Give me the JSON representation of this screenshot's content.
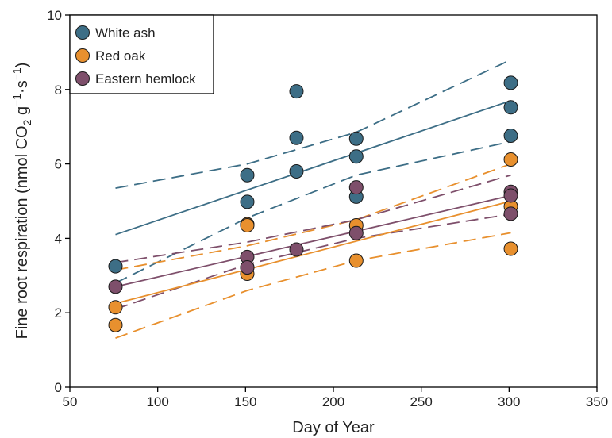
{
  "chart_data": {
    "type": "scatter",
    "title": "",
    "xlabel": "Day of Year",
    "ylabel": {
      "p1": "Fine root respiration (nmol CO",
      "sub": "2",
      "p2": " g",
      "sup1": "−1",
      "p3": "·s",
      "sup2": "−1",
      "p4": ")"
    },
    "xlim": [
      50,
      350
    ],
    "ylim": [
      0,
      10
    ],
    "xticks": [
      "50",
      "100",
      "150",
      "200",
      "250",
      "300",
      "350"
    ],
    "yticks": [
      "0",
      "2",
      "4",
      "6",
      "8",
      "10"
    ],
    "grid": false,
    "legend_position": "top-left",
    "series": [
      {
        "name": "White ash",
        "color": "#3d6e86",
        "points": [
          [
            76,
            3.25
          ],
          [
            151,
            5.7
          ],
          [
            151,
            4.98
          ],
          [
            179,
            7.95
          ],
          [
            179,
            6.7
          ],
          [
            179,
            5.8
          ],
          [
            213,
            6.68
          ],
          [
            213,
            6.2
          ],
          [
            213,
            5.12
          ],
          [
            301,
            8.18
          ],
          [
            301,
            7.52
          ],
          [
            301,
            6.76
          ]
        ],
        "fit": [
          [
            76,
            4.1
          ],
          [
            301,
            7.7
          ]
        ],
        "ci_upper": [
          [
            76,
            5.35
          ],
          [
            151,
            6.0
          ],
          [
            213,
            6.85
          ],
          [
            301,
            8.8
          ]
        ],
        "ci_lower": [
          [
            76,
            2.8
          ],
          [
            151,
            4.55
          ],
          [
            213,
            5.7
          ],
          [
            301,
            6.6
          ]
        ]
      },
      {
        "name": "Red oak",
        "color": "#e8902e",
        "points": [
          [
            76,
            2.15
          ],
          [
            76,
            1.67
          ],
          [
            151,
            4.38
          ],
          [
            151,
            4.35
          ],
          [
            151,
            3.05
          ],
          [
            151,
            3.22
          ],
          [
            213,
            4.35
          ],
          [
            213,
            3.4
          ],
          [
            301,
            6.12
          ],
          [
            301,
            4.86
          ],
          [
            301,
            3.72
          ]
        ],
        "fit": [
          [
            76,
            2.25
          ],
          [
            301,
            5.0
          ]
        ],
        "ci_upper": [
          [
            76,
            3.15
          ],
          [
            151,
            3.8
          ],
          [
            213,
            4.5
          ],
          [
            301,
            6.0
          ]
        ],
        "ci_lower": [
          [
            76,
            1.32
          ],
          [
            151,
            2.6
          ],
          [
            213,
            3.4
          ],
          [
            301,
            4.15
          ]
        ]
      },
      {
        "name": "Eastern hemlock",
        "color": "#7e4f6b",
        "points": [
          [
            76,
            2.7
          ],
          [
            151,
            3.5
          ],
          [
            151,
            3.22
          ],
          [
            179,
            3.7
          ],
          [
            213,
            5.37
          ],
          [
            213,
            4.14
          ],
          [
            301,
            5.25
          ],
          [
            301,
            5.15
          ],
          [
            301,
            4.66
          ]
        ],
        "fit": [
          [
            76,
            2.7
          ],
          [
            301,
            5.15
          ]
        ],
        "ci_upper": [
          [
            76,
            3.35
          ],
          [
            151,
            3.9
          ],
          [
            213,
            4.5
          ],
          [
            301,
            5.7
          ]
        ],
        "ci_lower": [
          [
            76,
            2.1
          ],
          [
            151,
            3.3
          ],
          [
            213,
            4.0
          ],
          [
            301,
            4.65
          ]
        ]
      }
    ]
  }
}
